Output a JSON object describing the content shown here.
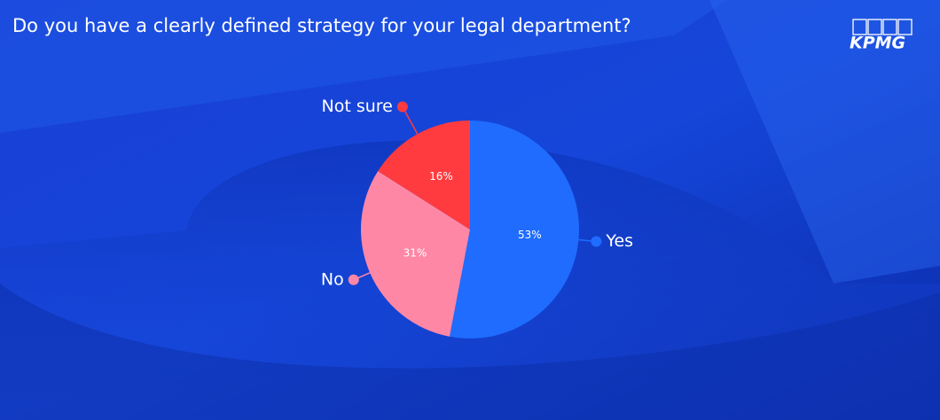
{
  "brand": "KPMG",
  "chart_data": {
    "type": "pie",
    "title": "Do you have a clearly defined strategy for your legal department?",
    "categories": [
      "Yes",
      "No",
      "Not sure"
    ],
    "values": [
      53,
      31,
      16
    ],
    "value_labels": [
      "53%",
      "31%",
      "16%"
    ],
    "colors": [
      "#1f6cff",
      "#ff87a6",
      "#ff3b3f"
    ]
  }
}
